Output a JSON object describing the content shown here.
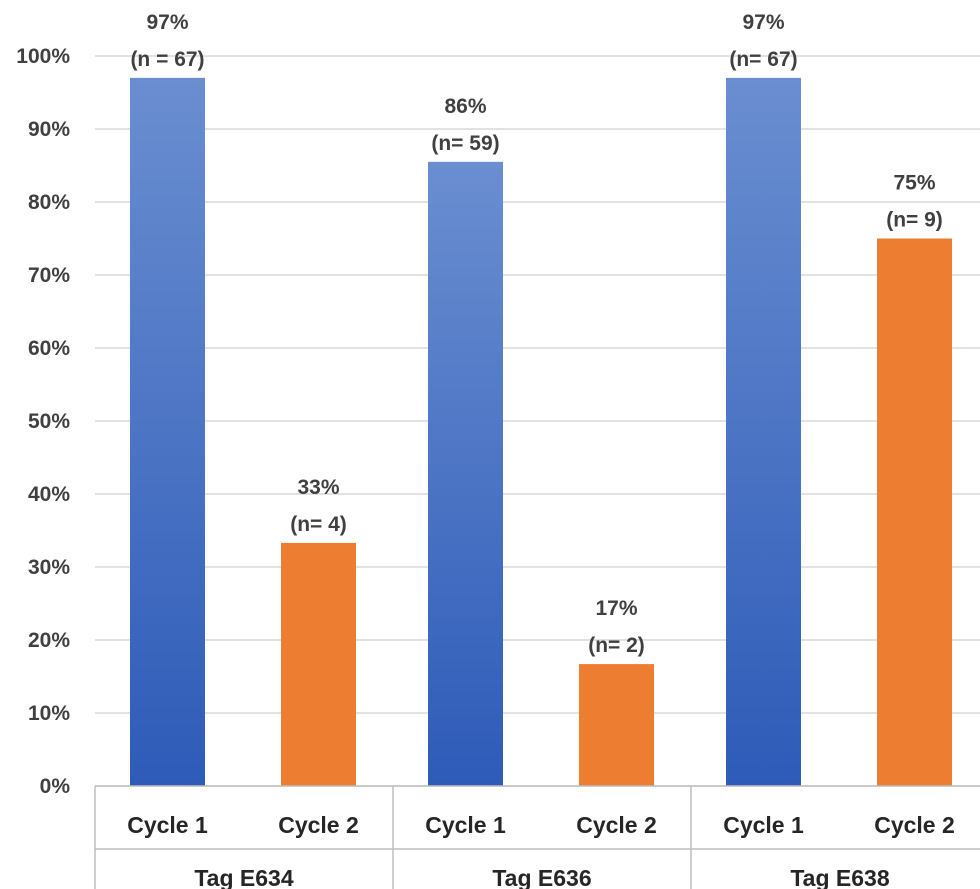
{
  "chart_data": {
    "type": "bar",
    "title": "",
    "xlabel": "",
    "ylabel": "",
    "ylim": [
      0,
      100
    ],
    "y_ticks": [
      "0%",
      "10%",
      "20%",
      "30%",
      "40%",
      "50%",
      "60%",
      "70%",
      "80%",
      "90%",
      "100%"
    ],
    "grid": true,
    "legend": "none",
    "groups": [
      {
        "label": "Tag E634",
        "bars": [
          {
            "category": "Cycle 1",
            "value": 97,
            "label_pct": "97%",
            "label_n": "(n = 67)",
            "color": "#4472C4"
          },
          {
            "category": "Cycle 2",
            "value": 33.3,
            "label_pct": "33%",
            "label_n": "(n= 4)",
            "color": "#ED7D31"
          }
        ]
      },
      {
        "label": "Tag E636",
        "bars": [
          {
            "category": "Cycle 1",
            "value": 85.5,
            "label_pct": "86%",
            "label_n": "(n= 59)",
            "color": "#4472C4"
          },
          {
            "category": "Cycle 2",
            "value": 16.7,
            "label_pct": "17%",
            "label_n": "(n= 2)",
            "color": "#ED7D31"
          }
        ]
      },
      {
        "label": "Tag E638",
        "bars": [
          {
            "category": "Cycle 1",
            "value": 97,
            "label_pct": "97%",
            "label_n": "(n= 67)",
            "color": "#4472C4"
          },
          {
            "category": "Cycle 2",
            "value": 75,
            "label_pct": "75%",
            "label_n": "(n= 9)",
            "color": "#ED7D31"
          }
        ]
      }
    ],
    "colors": {
      "cycle1_top": "#6A8ED0",
      "cycle1_bottom": "#2E5BB8",
      "cycle2": "#ED7D31",
      "grid": "#d9d9d9",
      "category_lines": "#bfbfbf"
    }
  }
}
